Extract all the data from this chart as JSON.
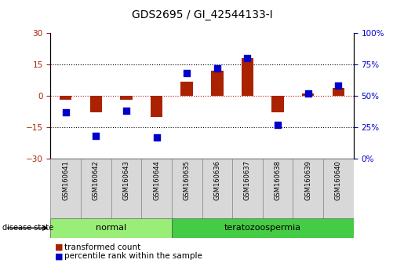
{
  "title": "GDS2695 / GI_42544133-I",
  "samples": [
    "GSM160641",
    "GSM160642",
    "GSM160643",
    "GSM160644",
    "GSM160635",
    "GSM160636",
    "GSM160637",
    "GSM160638",
    "GSM160639",
    "GSM160640"
  ],
  "transformed_count": [
    -2,
    -8,
    -2,
    -10,
    7,
    12,
    18,
    -8,
    1,
    4
  ],
  "percentile_rank": [
    37,
    18,
    38,
    17,
    68,
    72,
    80,
    27,
    52,
    58
  ],
  "bar_color": "#aa2200",
  "dot_color": "#0000cc",
  "ylim_left": [
    -30,
    30
  ],
  "ylim_right": [
    0,
    100
  ],
  "yticks_left": [
    -30,
    -15,
    0,
    15,
    30
  ],
  "yticks_right": [
    0,
    25,
    50,
    75,
    100
  ],
  "ytick_labels_right": [
    "0%",
    "25%",
    "50%",
    "75%",
    "100%"
  ],
  "hlines": [
    -15,
    0,
    15
  ],
  "normal_color": "#99ee77",
  "terato_color": "#44cc44",
  "label_bar": "transformed count",
  "label_dot": "percentile rank within the sample",
  "disease_state_label": "disease state",
  "normal_label": "normal",
  "terato_label": "teratozoospermia",
  "title_fontsize": 10,
  "tick_fontsize": 7.5,
  "bar_width": 0.4
}
